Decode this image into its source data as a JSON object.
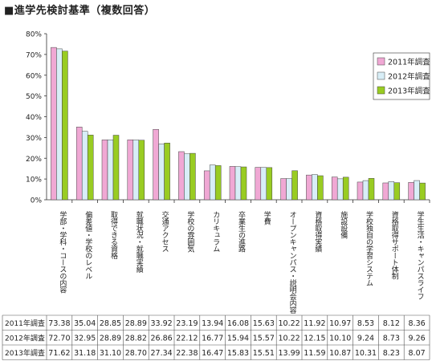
{
  "title": "■進学先検討基準（複数回答）",
  "chart_data": {
    "type": "bar",
    "title": "■進学先検討基準（複数回答）",
    "xlabel": "",
    "ylabel": "",
    "ylim": [
      0,
      80
    ],
    "yticks": [
      "0%",
      "10%",
      "20%",
      "30%",
      "40%",
      "50%",
      "60%",
      "70%",
      "80%"
    ],
    "grid": false,
    "legend_position": "top-right",
    "categories": [
      "学部・学科・コースの内容",
      "偏差値・学校のレベル",
      "取得できる資格",
      "就職状況・就職実績",
      "交通アクセス",
      "学校の雰囲気",
      "カリキュラム",
      "卒業生の進路",
      "学費",
      "オープンキャンパス・説明会内容",
      "資格取得実績",
      "施設設備",
      "学校独自の学習システム",
      "資格取得サポート体制",
      "学生生活・キャンパスライフ"
    ],
    "series": [
      {
        "name": "2011年調査",
        "row_label": "2011年調査",
        "color": "#f0a8d4",
        "values": [
          73.38,
          35.04,
          28.85,
          28.89,
          33.92,
          23.19,
          13.94,
          16.08,
          15.63,
          10.22,
          11.92,
          10.97,
          8.53,
          8.12,
          8.36
        ],
        "labels": [
          "73.38",
          "35.04",
          "28.85",
          "28.89",
          "33.92",
          "23.19",
          "13.94",
          "16.08",
          "15.63",
          "10.22",
          "11.92",
          "10.97",
          "8.53",
          "8.12",
          "8.36"
        ]
      },
      {
        "name": "2012年調査",
        "row_label": "2012年調査",
        "color": "#d8eef7",
        "values": [
          72.7,
          32.95,
          28.89,
          28.82,
          26.86,
          22.12,
          16.77,
          15.94,
          15.57,
          10.22,
          12.15,
          10.1,
          9.24,
          8.73,
          9.26
        ],
        "labels": [
          "72.70",
          "32.95",
          "28.89",
          "28.82",
          "26.86",
          "22.12",
          "16.77",
          "15.94",
          "15.57",
          "10.22",
          "12.15",
          "10.10",
          "9.24",
          "8.73",
          "9.26"
        ]
      },
      {
        "name": "2013年調査",
        "row_label": "2013年調査",
        "color": "#99cc22",
        "values": [
          71.62,
          31.18,
          31.1,
          28.7,
          27.34,
          22.38,
          16.47,
          15.83,
          15.51,
          13.99,
          11.59,
          10.87,
          10.31,
          8.23,
          8.07
        ],
        "labels": [
          "71.62",
          "31.18",
          "31.10",
          "28.70",
          "27.34",
          "22.38",
          "16.47",
          "15.83",
          "15.51",
          "13.99",
          "11.59",
          "10.87",
          "10.31",
          "8.23",
          "8.07"
        ]
      }
    ]
  }
}
